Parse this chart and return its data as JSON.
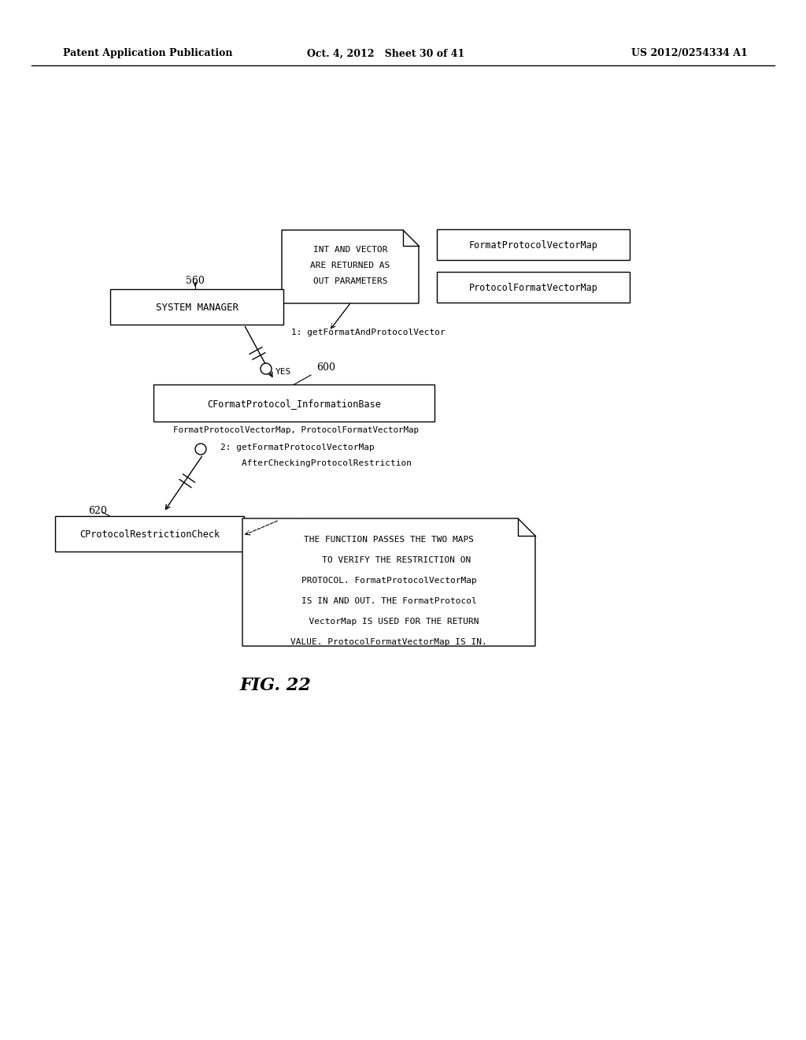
{
  "bg_color": "#ffffff",
  "header_left": "Patent Application Publication",
  "header_mid": "Oct. 4, 2012   Sheet 30 of 41",
  "header_right": "US 2012/0254334 A1",
  "fig_label": "FIG. 22",
  "note_top_lines": [
    "INT AND VECTOR",
    "ARE RETURNED AS",
    "OUT PARAMETERS"
  ],
  "fpvm_label": "FormatProtocolVectorMap",
  "pfvm_label": "ProtocolFormatVectorMap",
  "sm_label": "SYSTEM MANAGER",
  "cf_label": "CFormatProtocol_InformationBase",
  "cp_label": "CProtocolRestrictionCheck",
  "note_bot_lines": [
    "THE FUNCTION PASSES THE TWO MAPS",
    "   TO VERIFY THE RESTRICTION ON",
    "PROTOCOL. FormatProtocolVectorMap",
    "IS IN AND OUT. THE FormatProtocol",
    "  VectorMap IS USED FOR THE RETURN",
    "VALUE. ProtocolFormatVectorMap IS IN."
  ],
  "label_560": "560",
  "label_600": "600",
  "label_620": "620",
  "label_1": "1: getFormatAndProtocolVector",
  "label_yes": "YES",
  "label_maps": "FormatProtocolVectorMap, ProtocolFormatVectorMap",
  "label_2a": "2: getFormatProtocolVectorMap",
  "label_2b": "    AfterCheckingProtocolRestriction"
}
